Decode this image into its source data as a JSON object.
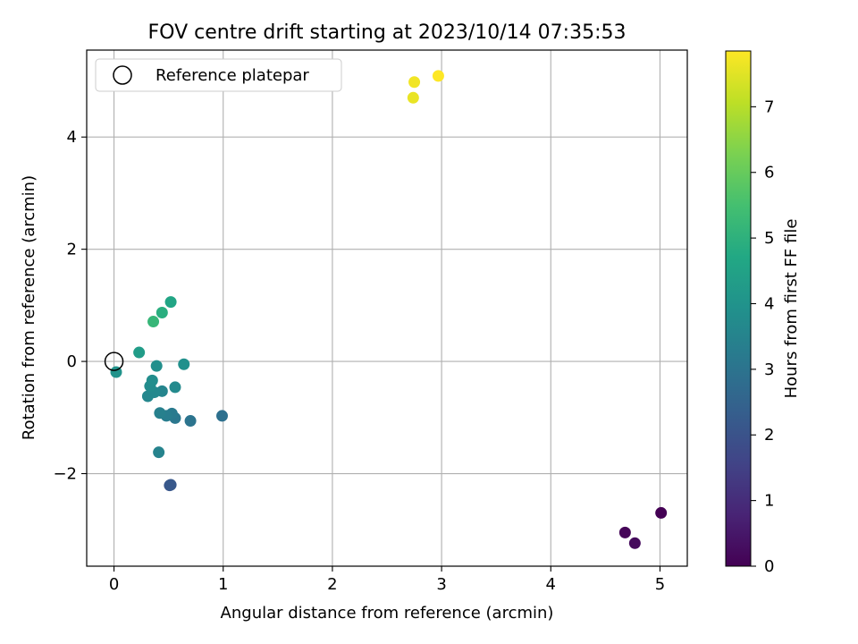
{
  "chart_data": {
    "type": "scatter",
    "title": "FOV centre drift starting at 2023/10/14 07:35:53",
    "xlabel": "Angular distance from reference (arcmin)",
    "ylabel": "Rotation from reference (arcmin)",
    "xlim": [
      -0.25,
      5.25
    ],
    "ylim": [
      -3.65,
      5.55
    ],
    "xticks": [
      0,
      1,
      2,
      3,
      4,
      5
    ],
    "xtick_labels": [
      "0",
      "1",
      "2",
      "3",
      "4",
      "5"
    ],
    "yticks": [
      -2,
      0,
      2,
      4
    ],
    "ytick_labels": [
      "−2",
      "0",
      "2",
      "4"
    ],
    "grid": true,
    "legend": {
      "placement": "top-left",
      "entries": [
        {
          "label": "Reference platepar",
          "marker": "open-circle"
        }
      ]
    },
    "reference_point": {
      "x": 0,
      "y": 0
    },
    "colorbar": {
      "label": "Hours from first FF file",
      "colormap": "viridis",
      "range": [
        0,
        7.85
      ],
      "ticks": [
        0,
        1,
        2,
        3,
        4,
        5,
        6,
        7
      ],
      "tick_labels": [
        "0",
        "1",
        "2",
        "3",
        "4",
        "5",
        "6",
        "7"
      ]
    },
    "points": [
      {
        "x": 5.01,
        "y": -2.7,
        "hours": 0.0
      },
      {
        "x": 4.68,
        "y": -3.05,
        "hours": 0.1
      },
      {
        "x": 4.77,
        "y": -3.24,
        "hours": 0.2
      },
      {
        "x": 0.51,
        "y": -2.21,
        "hours": 2.1
      },
      {
        "x": 0.52,
        "y": -2.2,
        "hours": 2.15
      },
      {
        "x": 0.99,
        "y": -0.97,
        "hours": 2.9
      },
      {
        "x": 0.7,
        "y": -1.06,
        "hours": 3.0
      },
      {
        "x": 0.56,
        "y": -1.01,
        "hours": 3.1
      },
      {
        "x": 0.53,
        "y": -0.93,
        "hours": 3.2
      },
      {
        "x": 0.48,
        "y": -0.97,
        "hours": 3.3
      },
      {
        "x": 0.42,
        "y": -0.92,
        "hours": 3.4
      },
      {
        "x": 0.41,
        "y": -1.62,
        "hours": 3.5
      },
      {
        "x": 0.44,
        "y": -0.53,
        "hours": 3.55
      },
      {
        "x": 0.31,
        "y": -0.62,
        "hours": 3.6
      },
      {
        "x": 0.37,
        "y": -0.55,
        "hours": 3.65
      },
      {
        "x": 0.56,
        "y": -0.46,
        "hours": 3.7
      },
      {
        "x": 0.33,
        "y": -0.44,
        "hours": 3.75
      },
      {
        "x": 0.35,
        "y": -0.34,
        "hours": 3.8
      },
      {
        "x": 0.39,
        "y": -0.08,
        "hours": 3.85
      },
      {
        "x": 0.64,
        "y": -0.05,
        "hours": 3.9
      },
      {
        "x": 0.02,
        "y": -0.19,
        "hours": 4.0
      },
      {
        "x": 0.23,
        "y": 0.16,
        "hours": 4.3
      },
      {
        "x": 0.52,
        "y": 1.06,
        "hours": 4.6
      },
      {
        "x": 0.44,
        "y": 0.87,
        "hours": 4.9
      },
      {
        "x": 0.36,
        "y": 0.71,
        "hours": 5.2
      },
      {
        "x": 2.74,
        "y": 4.7,
        "hours": 7.6
      },
      {
        "x": 2.75,
        "y": 4.98,
        "hours": 7.7
      },
      {
        "x": 2.97,
        "y": 5.09,
        "hours": 7.85
      }
    ]
  }
}
